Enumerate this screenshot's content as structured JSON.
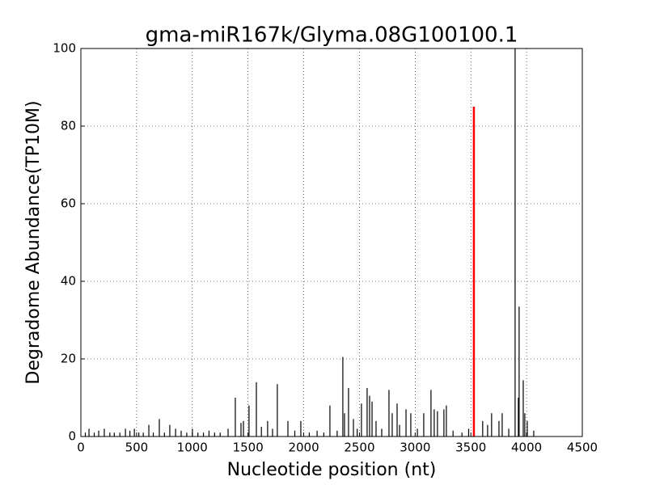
{
  "chart_data": {
    "type": "vlines",
    "title": "gma-miR167k/Glyma.08G100100.1",
    "x_label": "Nucleotide position (nt)",
    "y_label": "Degradome Abundance(TP10M)",
    "xlim": [
      0,
      4500
    ],
    "ylim": [
      0,
      100
    ],
    "xticks": [
      0,
      500,
      1000,
      1500,
      2000,
      2500,
      3000,
      3500,
      4000,
      4500
    ],
    "yticks": [
      0,
      20,
      40,
      60,
      80,
      100
    ],
    "grid": true,
    "series": [
      {
        "color": "#000000",
        "x": [
          40,
          73,
          120,
          160,
          210,
          260,
          300,
          350,
          400,
          440,
          480,
          520,
          560,
          610,
          650,
          704,
          750,
          798,
          850,
          900,
          950,
          1001,
          1050,
          1100,
          1150,
          1200,
          1250,
          1321,
          1386,
          1437,
          1459,
          1509,
          1575,
          1620,
          1676,
          1720,
          1763,
          1858,
          1920,
          1974,
          2050,
          2120,
          2180,
          2235,
          2300,
          2351,
          2366,
          2402,
          2446,
          2480,
          2518,
          2569,
          2591,
          2613,
          2649,
          2700,
          2765,
          2794,
          2838,
          2860,
          2918,
          2961,
          3020,
          3077,
          3142,
          3171,
          3200,
          3258,
          3280,
          3340,
          3420,
          3480,
          3606,
          3650,
          3686,
          3752,
          3781,
          3840,
          3897,
          3926,
          3933,
          3970,
          3984,
          4006,
          4064
        ],
        "values": [
          1,
          2,
          1,
          1.5,
          2,
          1,
          1,
          1,
          2,
          1.5,
          2,
          1,
          1,
          3,
          1,
          4.5,
          1,
          3,
          2,
          1.5,
          1,
          2,
          1,
          1,
          1.5,
          1,
          1,
          2,
          10,
          3.5,
          4,
          8,
          14,
          2.5,
          4,
          2,
          13.5,
          4,
          1.5,
          4,
          1,
          1.5,
          1,
          8,
          1.5,
          20.5,
          6,
          12.5,
          4.5,
          2,
          8.5,
          12.5,
          10.5,
          9,
          4,
          2,
          12,
          6,
          8.5,
          3,
          7,
          6,
          2,
          6,
          12,
          7,
          6.5,
          7,
          8,
          1.5,
          1,
          2,
          4,
          3,
          6,
          4,
          6,
          2,
          100,
          10,
          33.5,
          14.5,
          6,
          4,
          1.5
        ]
      },
      {
        "color": "#ff0000",
        "x": [
          3527
        ],
        "values": [
          85
        ]
      }
    ]
  }
}
